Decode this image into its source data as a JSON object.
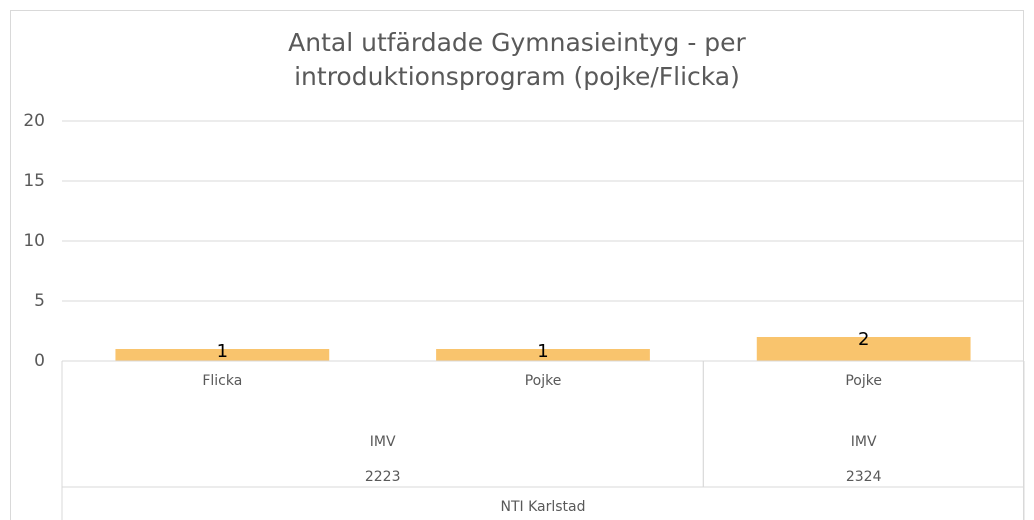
{
  "chart_data": {
    "type": "bar",
    "title": "Antal utfärdade Gymnasieintyg - per introduktionsprogram (pojke/Flicka)",
    "color": "#f9c46d",
    "ylim": [
      0,
      20
    ],
    "yticks": [
      0,
      5,
      10,
      15,
      20
    ],
    "grid": true,
    "groups": [
      {
        "name": "NTI Karlstad",
        "groups": [
          {
            "name": "2223",
            "groups": [
              {
                "name": "IMV",
                "categories": [
                  "Flicka",
                  "Pojke"
                ],
                "values": [
                  1,
                  1
                ]
              }
            ]
          },
          {
            "name": "2324",
            "groups": [
              {
                "name": "IMV",
                "categories": [
                  "Pojke"
                ],
                "values": [
                  2
                ]
              }
            ]
          }
        ]
      }
    ]
  }
}
